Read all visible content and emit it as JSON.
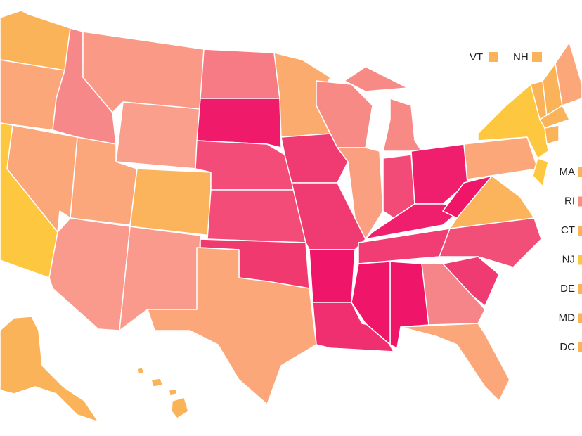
{
  "top_labels": [
    {
      "label": "VT",
      "color": "#fbb35a"
    },
    {
      "label": "NH",
      "color": "#fbb35a"
    }
  ],
  "side_labels": [
    {
      "label": "MA",
      "color": "#fbb35a"
    },
    {
      "label": "RI",
      "color": "#f8907f"
    },
    {
      "label": "CT",
      "color": "#fbb35a"
    },
    {
      "label": "NJ",
      "color": "#fdc83f"
    },
    {
      "label": "DE",
      "color": "#fbb35a"
    },
    {
      "label": "MD",
      "color": "#fbb35a"
    },
    {
      "label": "DC",
      "color": "#fbb35a"
    }
  ]
}
